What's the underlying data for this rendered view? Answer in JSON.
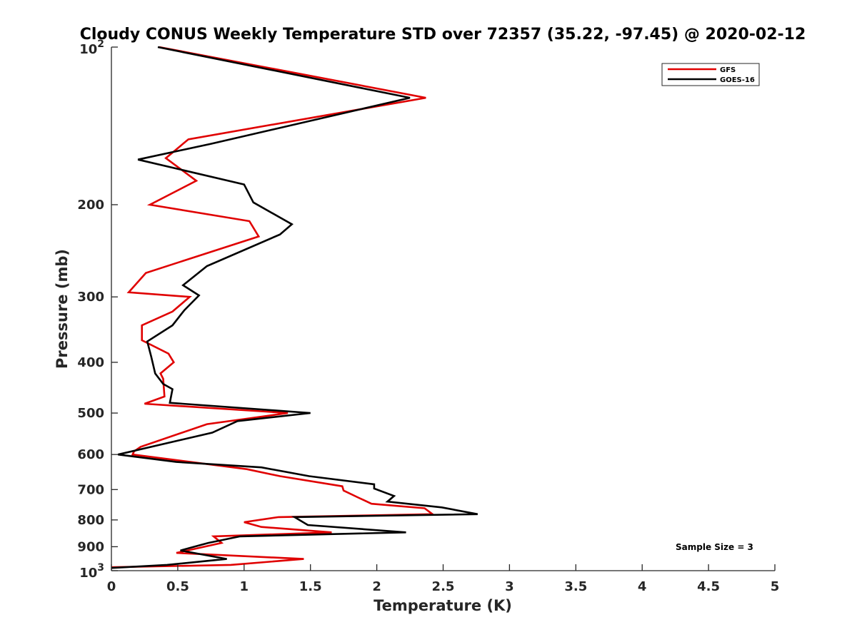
{
  "chart_data": {
    "type": "line",
    "title": "Cloudy CONUS Weekly Temperature STD over 72357 (35.22, -97.45) @ 2020-02-12",
    "xlabel": "Temperature (K)",
    "ylabel": "Pressure (mb)",
    "xlim": [
      0,
      5
    ],
    "ylim": [
      100,
      1000
    ],
    "yscale": "log",
    "y_reversed": true,
    "grid": false,
    "legend_position": "top-right",
    "x_ticks": [
      {
        "value": 0,
        "label": "0"
      },
      {
        "value": 0.5,
        "label": "0.5"
      },
      {
        "value": 1,
        "label": "1"
      },
      {
        "value": 1.5,
        "label": "1.5"
      },
      {
        "value": 2,
        "label": "2"
      },
      {
        "value": 2.5,
        "label": "2.5"
      },
      {
        "value": 3,
        "label": "3"
      },
      {
        "value": 3.5,
        "label": "3.5"
      },
      {
        "value": 4,
        "label": "4"
      },
      {
        "value": 4.5,
        "label": "4.5"
      },
      {
        "value": 5,
        "label": "5"
      }
    ],
    "y_ticks": [
      {
        "value": 100,
        "label": "10",
        "exponent": "2"
      },
      {
        "value": 200,
        "label": "200"
      },
      {
        "value": 300,
        "label": "300"
      },
      {
        "value": 400,
        "label": "400"
      },
      {
        "value": 500,
        "label": "500"
      },
      {
        "value": 600,
        "label": "600"
      },
      {
        "value": 700,
        "label": "700"
      },
      {
        "value": 800,
        "label": "800"
      },
      {
        "value": 900,
        "label": "900"
      },
      {
        "value": 1000,
        "label": "10",
        "exponent": "3"
      }
    ],
    "series": [
      {
        "name": "GFS",
        "color": "#e00000",
        "points": [
          {
            "x": 0.36,
            "y": 100
          },
          {
            "x": 2.37,
            "y": 125
          },
          {
            "x": 0.58,
            "y": 150
          },
          {
            "x": 0.41,
            "y": 163
          },
          {
            "x": 0.64,
            "y": 180
          },
          {
            "x": 0.29,
            "y": 200
          },
          {
            "x": 1.04,
            "y": 215
          },
          {
            "x": 1.11,
            "y": 230
          },
          {
            "x": 0.26,
            "y": 270
          },
          {
            "x": 0.13,
            "y": 294
          },
          {
            "x": 0.59,
            "y": 300
          },
          {
            "x": 0.46,
            "y": 320
          },
          {
            "x": 0.23,
            "y": 340
          },
          {
            "x": 0.23,
            "y": 363
          },
          {
            "x": 0.43,
            "y": 385
          },
          {
            "x": 0.47,
            "y": 400
          },
          {
            "x": 0.37,
            "y": 420
          },
          {
            "x": 0.39,
            "y": 430
          },
          {
            "x": 0.4,
            "y": 465
          },
          {
            "x": 0.25,
            "y": 480
          },
          {
            "x": 1.33,
            "y": 500
          },
          {
            "x": 0.72,
            "y": 525
          },
          {
            "x": 0.22,
            "y": 580
          },
          {
            "x": 0.17,
            "y": 592
          },
          {
            "x": 0.16,
            "y": 600
          },
          {
            "x": 1.02,
            "y": 640
          },
          {
            "x": 1.27,
            "y": 660
          },
          {
            "x": 1.74,
            "y": 690
          },
          {
            "x": 1.75,
            "y": 703
          },
          {
            "x": 1.86,
            "y": 725
          },
          {
            "x": 1.96,
            "y": 745
          },
          {
            "x": 2.36,
            "y": 760
          },
          {
            "x": 2.42,
            "y": 780
          },
          {
            "x": 1.26,
            "y": 790
          },
          {
            "x": 1.0,
            "y": 808
          },
          {
            "x": 1.13,
            "y": 825
          },
          {
            "x": 1.66,
            "y": 845
          },
          {
            "x": 0.77,
            "y": 860
          },
          {
            "x": 0.83,
            "y": 885
          },
          {
            "x": 0.49,
            "y": 925
          },
          {
            "x": 1.45,
            "y": 950
          },
          {
            "x": 0.9,
            "y": 975
          },
          {
            "x": 0.0,
            "y": 985
          }
        ]
      },
      {
        "name": "GOES-16",
        "color": "#000000",
        "points": [
          {
            "x": 0.35,
            "y": 100
          },
          {
            "x": 2.25,
            "y": 125
          },
          {
            "x": 0.75,
            "y": 153
          },
          {
            "x": 0.2,
            "y": 164
          },
          {
            "x": 1.0,
            "y": 183
          },
          {
            "x": 1.07,
            "y": 198
          },
          {
            "x": 1.36,
            "y": 218
          },
          {
            "x": 1.27,
            "y": 228
          },
          {
            "x": 0.72,
            "y": 262
          },
          {
            "x": 0.54,
            "y": 285
          },
          {
            "x": 0.66,
            "y": 298
          },
          {
            "x": 0.55,
            "y": 318
          },
          {
            "x": 0.46,
            "y": 340
          },
          {
            "x": 0.27,
            "y": 365
          },
          {
            "x": 0.3,
            "y": 390
          },
          {
            "x": 0.33,
            "y": 420
          },
          {
            "x": 0.39,
            "y": 440
          },
          {
            "x": 0.46,
            "y": 450
          },
          {
            "x": 0.44,
            "y": 478
          },
          {
            "x": 1.5,
            "y": 500
          },
          {
            "x": 0.95,
            "y": 518
          },
          {
            "x": 0.76,
            "y": 545
          },
          {
            "x": 0.05,
            "y": 600
          },
          {
            "x": 0.49,
            "y": 620
          },
          {
            "x": 1.13,
            "y": 635
          },
          {
            "x": 1.49,
            "y": 660
          },
          {
            "x": 1.98,
            "y": 684
          },
          {
            "x": 1.98,
            "y": 697
          },
          {
            "x": 2.13,
            "y": 720
          },
          {
            "x": 2.08,
            "y": 738
          },
          {
            "x": 2.49,
            "y": 757
          },
          {
            "x": 2.76,
            "y": 780
          },
          {
            "x": 1.38,
            "y": 790
          },
          {
            "x": 1.48,
            "y": 818
          },
          {
            "x": 2.22,
            "y": 845
          },
          {
            "x": 0.97,
            "y": 860
          },
          {
            "x": 0.73,
            "y": 885
          },
          {
            "x": 0.52,
            "y": 915
          },
          {
            "x": 0.87,
            "y": 950
          },
          {
            "x": 0.42,
            "y": 975
          },
          {
            "x": 0.0,
            "y": 988
          }
        ]
      }
    ],
    "annotations": [
      {
        "text": "Sample Size = 3"
      }
    ]
  }
}
